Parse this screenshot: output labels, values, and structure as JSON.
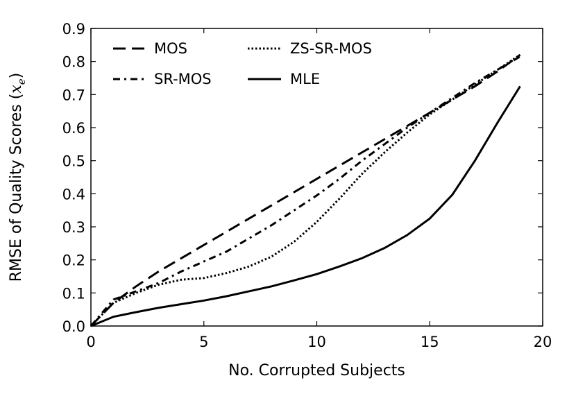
{
  "chart_data": {
    "type": "line",
    "xlabel": "No. Corrupted Subjects",
    "ylabel": {
      "main": "RMSE of Quality Scores (",
      "var": "x",
      "sub": "e",
      "close": ")"
    },
    "xlim": [
      0,
      20
    ],
    "ylim": [
      0,
      0.9
    ],
    "xticks": [
      "0",
      "5",
      "10",
      "15",
      "20"
    ],
    "yticks": [
      "0.0",
      "0.1",
      "0.2",
      "0.3",
      "0.4",
      "0.5",
      "0.6",
      "0.7",
      "0.8",
      "0.9"
    ],
    "grid": false,
    "legend_position": "top-left",
    "x": [
      0,
      1,
      2,
      3,
      4,
      5,
      6,
      7,
      8,
      9,
      10,
      11,
      12,
      13,
      14,
      15,
      16,
      17,
      18,
      19
    ],
    "series": [
      {
        "name": "MOS",
        "style": "dashed",
        "values": [
          0.0,
          0.07,
          0.12,
          0.165,
          0.205,
          0.245,
          0.285,
          0.325,
          0.365,
          0.405,
          0.445,
          0.485,
          0.525,
          0.565,
          0.605,
          0.645,
          0.685,
          0.725,
          0.77,
          0.82
        ]
      },
      {
        "name": "SR-MOS",
        "style": "dashdot",
        "values": [
          0.0,
          0.08,
          0.105,
          0.13,
          0.165,
          0.195,
          0.225,
          0.265,
          0.305,
          0.35,
          0.395,
          0.445,
          0.5,
          0.55,
          0.6,
          0.645,
          0.69,
          0.735,
          0.775,
          0.815
        ]
      },
      {
        "name": "ZS-SR-MOS",
        "style": "dotted",
        "values": [
          0.0,
          0.07,
          0.1,
          0.125,
          0.14,
          0.145,
          0.16,
          0.18,
          0.21,
          0.255,
          0.315,
          0.385,
          0.46,
          0.525,
          0.585,
          0.64,
          0.685,
          0.73,
          0.775,
          0.82
        ]
      },
      {
        "name": "MLE",
        "style": "solid",
        "values": [
          0.0,
          0.028,
          0.042,
          0.055,
          0.066,
          0.077,
          0.09,
          0.105,
          0.12,
          0.138,
          0.157,
          0.18,
          0.205,
          0.236,
          0.275,
          0.325,
          0.397,
          0.5,
          0.615,
          0.725
        ]
      }
    ]
  }
}
